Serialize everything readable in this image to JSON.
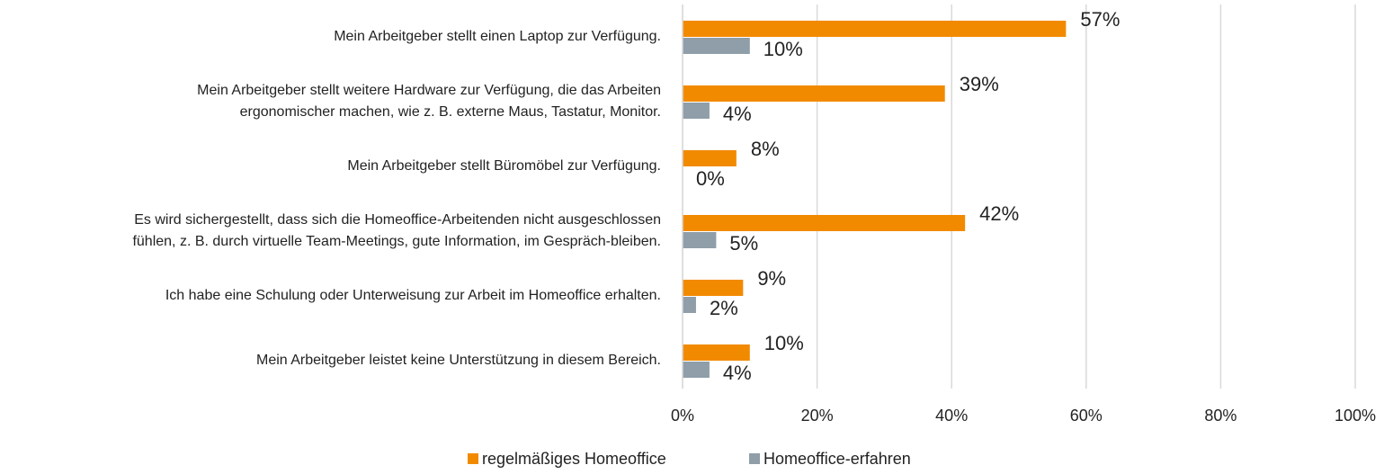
{
  "chart_data": {
    "type": "bar",
    "orientation": "horizontal",
    "categories": [
      "Mein Arbeitgeber stellt einen Laptop zur Verfügung.",
      "Mein Arbeitgeber stellt weitere Hardware zur Verfügung, die das Arbeiten\nergonomischer machen, wie z. B. externe Maus, Tastatur, Monitor.",
      "Mein Arbeitgeber stellt Büromöbel zur Verfügung.",
      "Es wird sichergestellt, dass sich die Homeoffice-Arbeitenden nicht ausgeschlossen\nfühlen, z. B. durch virtuelle Team-Meetings, gute Information, im Gespräch-bleiben.",
      "Ich habe eine Schulung oder Unterweisung zur Arbeit im Homeoffice erhalten.",
      "Mein Arbeitgeber leistet keine Unterstützung in diesem Bereich."
    ],
    "series": [
      {
        "name": "regelmäßiges Homeoffice",
        "color": "#f28a00",
        "values": [
          57,
          39,
          8,
          42,
          9,
          10
        ],
        "value_labels": [
          "57%",
          "39%",
          "8%",
          "42%",
          "9%",
          "10%"
        ]
      },
      {
        "name": "Homeoffice-erfahren",
        "color": "#8f9ea8",
        "values": [
          10,
          4,
          0,
          5,
          2,
          4
        ],
        "value_labels": [
          "10%",
          "4%",
          "0%",
          "5%",
          "2%",
          "4%"
        ]
      }
    ],
    "xlim": [
      0,
      100
    ],
    "xticks": [
      {
        "value": 0,
        "label": "0%"
      },
      {
        "value": 20,
        "label": "20%"
      },
      {
        "value": 40,
        "label": "40%"
      },
      {
        "value": 60,
        "label": "60%"
      },
      {
        "value": 80,
        "label": "80%"
      },
      {
        "value": 100,
        "label": "100%"
      }
    ],
    "grid": true,
    "legend": "bottom"
  }
}
